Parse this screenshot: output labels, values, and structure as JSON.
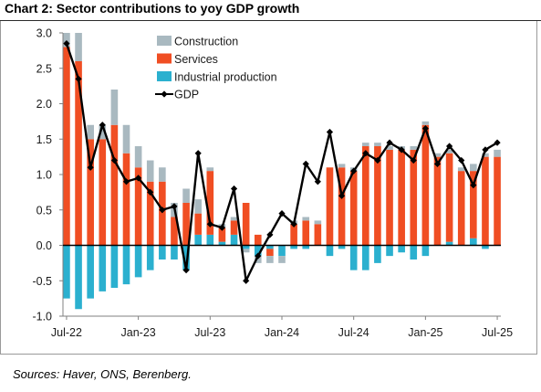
{
  "header": {
    "title": "Chart 2: Sector contributions to yoy GDP growth"
  },
  "footer": {
    "source": "Sources: Haver, ONS, Berenberg."
  },
  "chart_data": {
    "type": "bar",
    "stacked": true,
    "title": "Chart 2: Sector contributions to yoy GDP growth",
    "xlabel": "",
    "ylabel": "",
    "ylim": [
      -1.0,
      3.0
    ],
    "yticks": [
      "3.0",
      "2.5",
      "2.0",
      "1.5",
      "1.0",
      "0.5",
      "0.0",
      "-0.5",
      "-1.0"
    ],
    "ytick_values": [
      3.0,
      2.5,
      2.0,
      1.5,
      1.0,
      0.5,
      0.0,
      -0.5,
      -1.0
    ],
    "xtick_labels": [
      "Jul-22",
      "Jan-23",
      "Jul-23",
      "Jan-24",
      "Jul-24",
      "Jan-25",
      "Jul-25"
    ],
    "xtick_index": [
      0,
      6,
      12,
      18,
      24,
      30,
      36
    ],
    "grid": false,
    "legend_position": "top-center",
    "colors": {
      "Construction": "#a9b9c0",
      "Services": "#f04e23",
      "Industrial production": "#2bb0cf",
      "GDP": "#000000",
      "zero_line": "#000000",
      "axis": "#808080"
    },
    "categories": [
      "Jul-22",
      "Aug-22",
      "Sep-22",
      "Oct-22",
      "Nov-22",
      "Dec-22",
      "Jan-23",
      "Feb-23",
      "Mar-23",
      "Apr-23",
      "May-23",
      "Jun-23",
      "Jul-23",
      "Aug-23",
      "Sep-23",
      "Oct-23",
      "Nov-23",
      "Dec-23",
      "Jan-24",
      "Feb-24",
      "Mar-24",
      "Apr-24",
      "May-24",
      "Jun-24",
      "Jul-24",
      "Aug-24",
      "Sep-24",
      "Oct-24",
      "Nov-24",
      "Dec-24",
      "Jan-25",
      "Feb-25",
      "Mar-25",
      "Apr-25",
      "May-25",
      "Jun-25",
      "Jul-25"
    ],
    "series": [
      {
        "name": "Construction",
        "kind": "bar",
        "values": [
          0.2,
          0.4,
          0.2,
          0.2,
          0.5,
          0.4,
          0.3,
          0.3,
          0.2,
          0.2,
          0.2,
          0.2,
          0.05,
          0.05,
          0.05,
          -0.05,
          -0.1,
          -0.1,
          -0.1,
          0.05,
          0.05,
          0.05,
          0.0,
          0.05,
          0.05,
          0.05,
          0.05,
          0.05,
          0.05,
          0.05,
          0.05,
          0.05,
          0.05,
          0.05,
          0.1,
          0.05,
          0.1
        ]
      },
      {
        "name": "Services",
        "kind": "bar",
        "values": [
          2.8,
          2.6,
          1.5,
          1.5,
          1.7,
          1.3,
          1.1,
          0.9,
          0.9,
          0.4,
          0.6,
          0.3,
          0.9,
          0.2,
          0.2,
          0.6,
          0.15,
          -0.1,
          0.0,
          0.3,
          0.35,
          0.3,
          1.1,
          1.1,
          1.05,
          1.4,
          1.4,
          1.35,
          1.35,
          1.35,
          1.7,
          1.25,
          1.25,
          1.05,
          0.95,
          1.25,
          1.25
        ]
      },
      {
        "name": "Industrial production",
        "kind": "bar",
        "values": [
          -0.75,
          -0.9,
          -0.75,
          -0.65,
          -0.6,
          -0.55,
          -0.45,
          -0.35,
          -0.2,
          -0.2,
          -0.35,
          0.15,
          0.15,
          0.05,
          0.15,
          -0.05,
          -0.15,
          -0.05,
          -0.15,
          -0.05,
          -0.05,
          0.0,
          -0.15,
          -0.05,
          -0.35,
          -0.35,
          -0.25,
          -0.15,
          -0.1,
          -0.2,
          -0.15,
          0.0,
          0.05,
          0.0,
          0.1,
          -0.05,
          0.0
        ]
      },
      {
        "name": "GDP",
        "kind": "line",
        "values": [
          2.85,
          2.35,
          1.1,
          1.7,
          1.2,
          0.9,
          0.95,
          0.75,
          0.5,
          0.55,
          -0.35,
          1.3,
          0.3,
          0.25,
          0.8,
          -0.5,
          -0.15,
          0.15,
          0.45,
          0.3,
          1.15,
          0.9,
          1.6,
          0.7,
          1.05,
          1.3,
          1.2,
          1.45,
          1.35,
          1.2,
          1.65,
          1.15,
          1.4,
          1.2,
          0.85,
          1.35,
          1.45
        ]
      }
    ]
  }
}
